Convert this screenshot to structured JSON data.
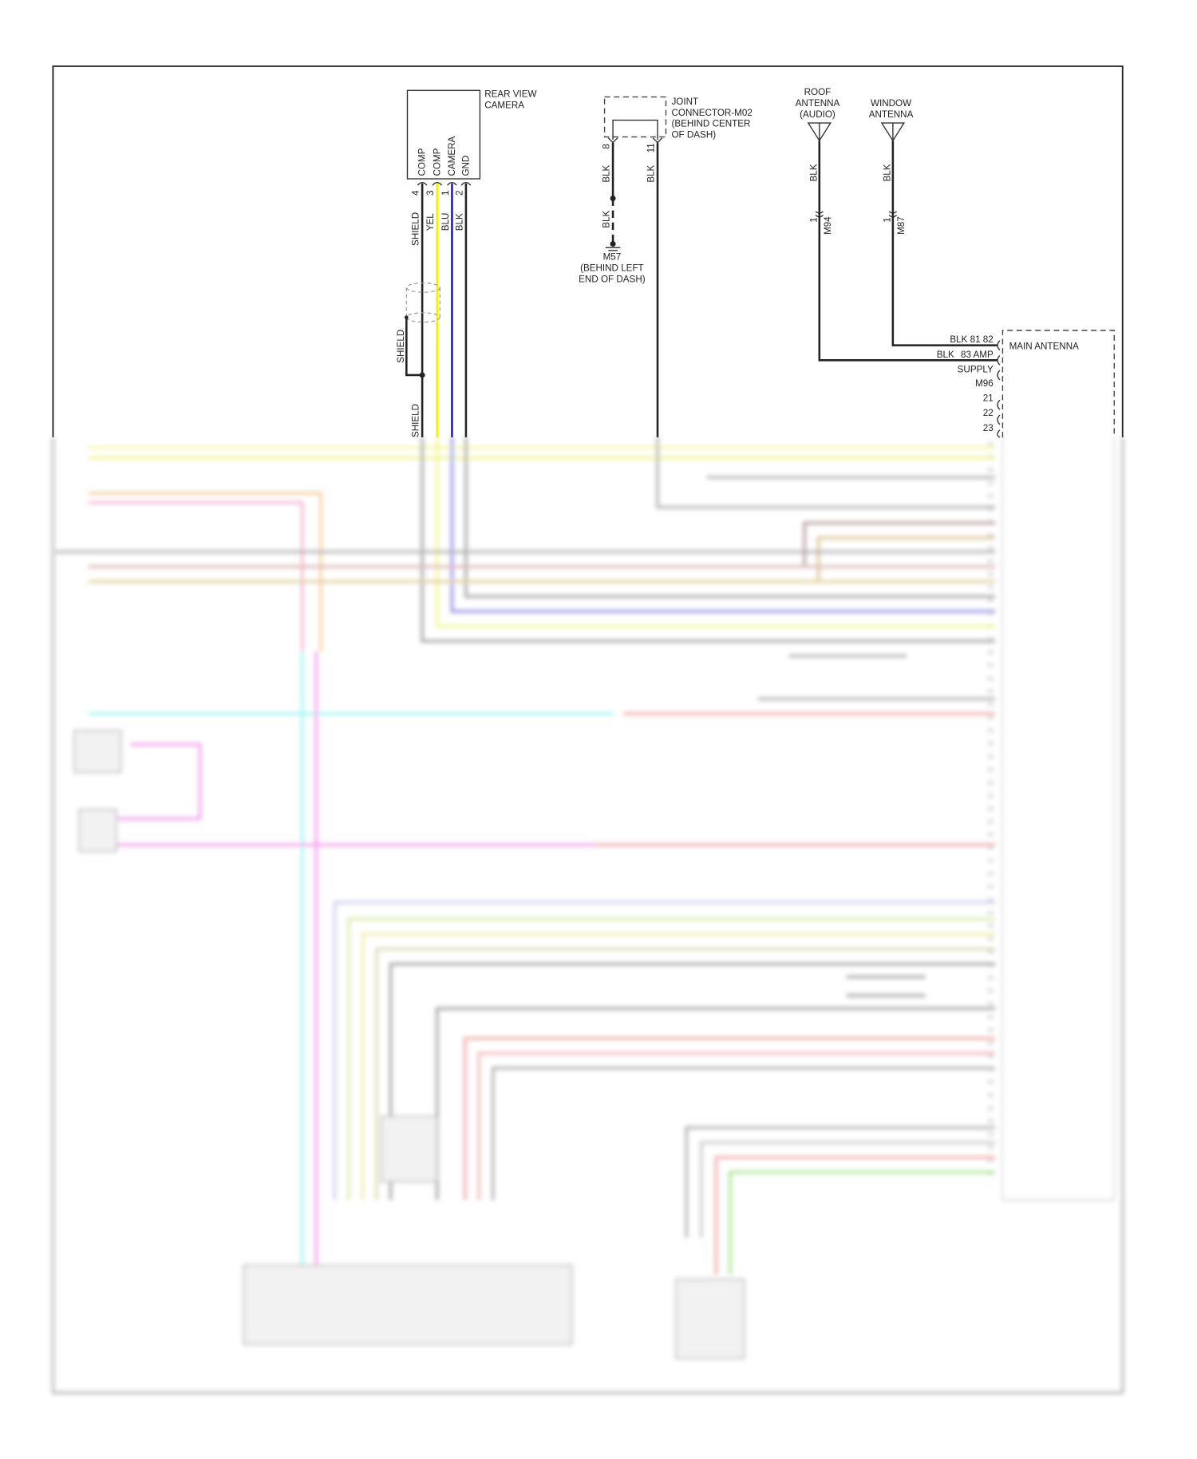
{
  "rear_view_camera": {
    "title": [
      "REAR VIEW",
      "CAMERA"
    ],
    "pins": [
      {
        "num": "4",
        "name": "COMP",
        "wire": "SHIELD"
      },
      {
        "num": "3",
        "name": "COMP",
        "wire": "YEL"
      },
      {
        "num": "1",
        "name": "CAMERA",
        "wire": "BLU"
      },
      {
        "num": "2",
        "name": "GND",
        "wire": "BLK"
      }
    ],
    "shield_label_upper": "SHIELD",
    "shield_label_lower": "SHIELD"
  },
  "joint_connector": {
    "title": [
      "JOINT",
      "CONNECTOR-M02",
      "(BEHIND CENTER",
      "OF DASH)"
    ],
    "pins": [
      {
        "num": "8",
        "wire": "BLK"
      },
      {
        "num": "11",
        "wire": "BLK"
      }
    ],
    "ground_wire": "BLK"
  },
  "ground": {
    "id": "M57",
    "location": [
      "(BEHIND LEFT",
      "END OF DASH)"
    ]
  },
  "roof_antenna": {
    "title": [
      "ROOF",
      "ANTENNA",
      "(AUDIO)"
    ],
    "wire": "BLK",
    "pin": "1",
    "connector": "M94"
  },
  "window_antenna": {
    "title": [
      "WINDOW",
      "ANTENNA"
    ],
    "wire": "BLK",
    "pin": "1",
    "connector": "M87"
  },
  "main_antenna": {
    "title": "MAIN ANTENNA",
    "labels": [
      "BLK 81 82",
      "BLK",
      "83 AMP",
      "SUPPLY",
      "M96",
      "21",
      "22",
      "23"
    ]
  },
  "wire_colors": {
    "black": "#222222",
    "yellow": "#f2f200",
    "blue": "#1a1acc",
    "cyan": "#5fe8f0",
    "pink": "#f060e0",
    "red": "#f08080",
    "green": "#90e070",
    "gray": "#777777",
    "orange": "#f0c080"
  }
}
